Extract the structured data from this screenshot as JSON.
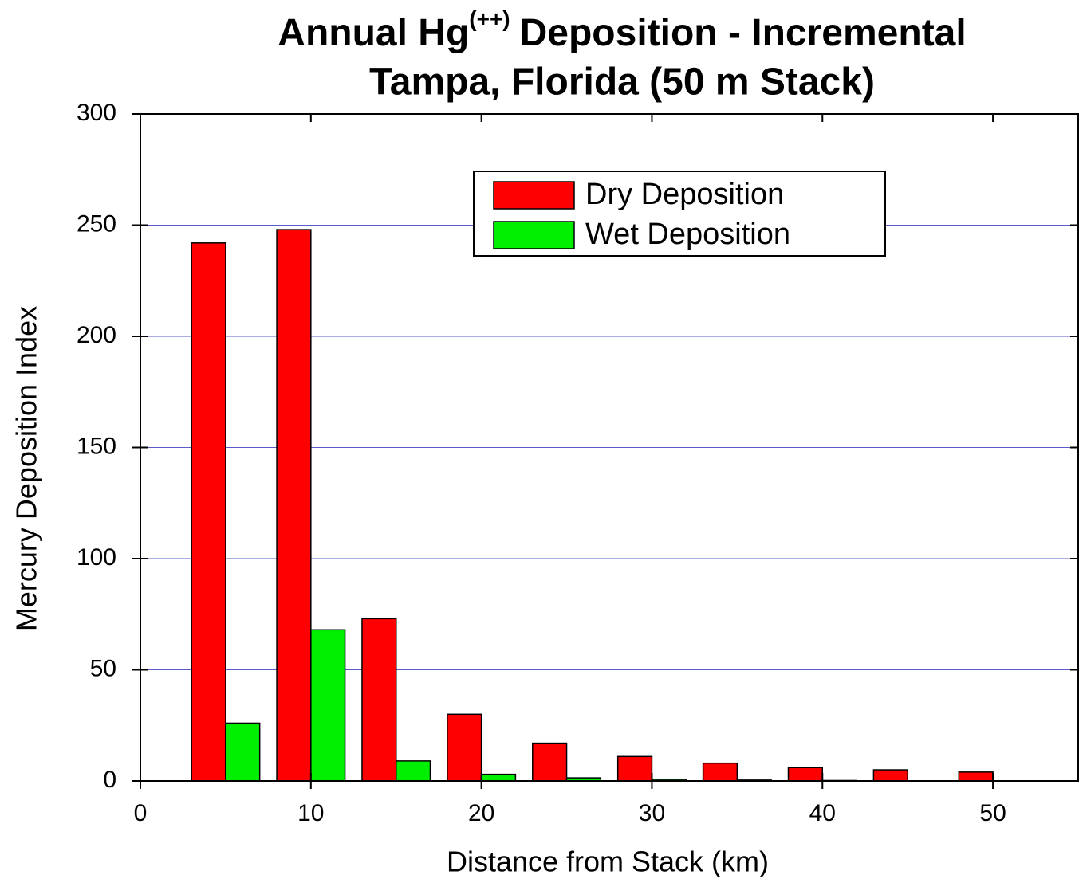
{
  "chart_data": {
    "type": "bar",
    "title": "Annual Hg",
    "title_superscript": "(++)",
    "title_rest": "Deposition - Incremental",
    "subtitle": "Tampa, Florida (50 m Stack)",
    "x_label": "Distance from Stack (km)",
    "y_label": "Mercury Deposition Index",
    "x": [
      5,
      10,
      15,
      20,
      25,
      30,
      35,
      40,
      45,
      50
    ],
    "series": [
      {
        "name": "Dry Deposition",
        "color": "#ff0000",
        "values": [
          242,
          248,
          73,
          30,
          17,
          11,
          8,
          6,
          5,
          4
        ]
      },
      {
        "name": "Wet Deposition",
        "color": "#00ee00",
        "values": [
          26,
          68,
          9,
          3,
          1.4,
          0.7,
          0.4,
          0.2,
          0,
          0
        ]
      }
    ],
    "xlim": [
      0,
      55
    ],
    "ylim": [
      0,
      300
    ],
    "xticks": [
      0,
      10,
      20,
      30,
      40,
      50
    ],
    "yticks": [
      0,
      50,
      100,
      150,
      200,
      250,
      300
    ],
    "grid": true,
    "grid_color": "#5a5ac8",
    "legend": "top-center"
  }
}
